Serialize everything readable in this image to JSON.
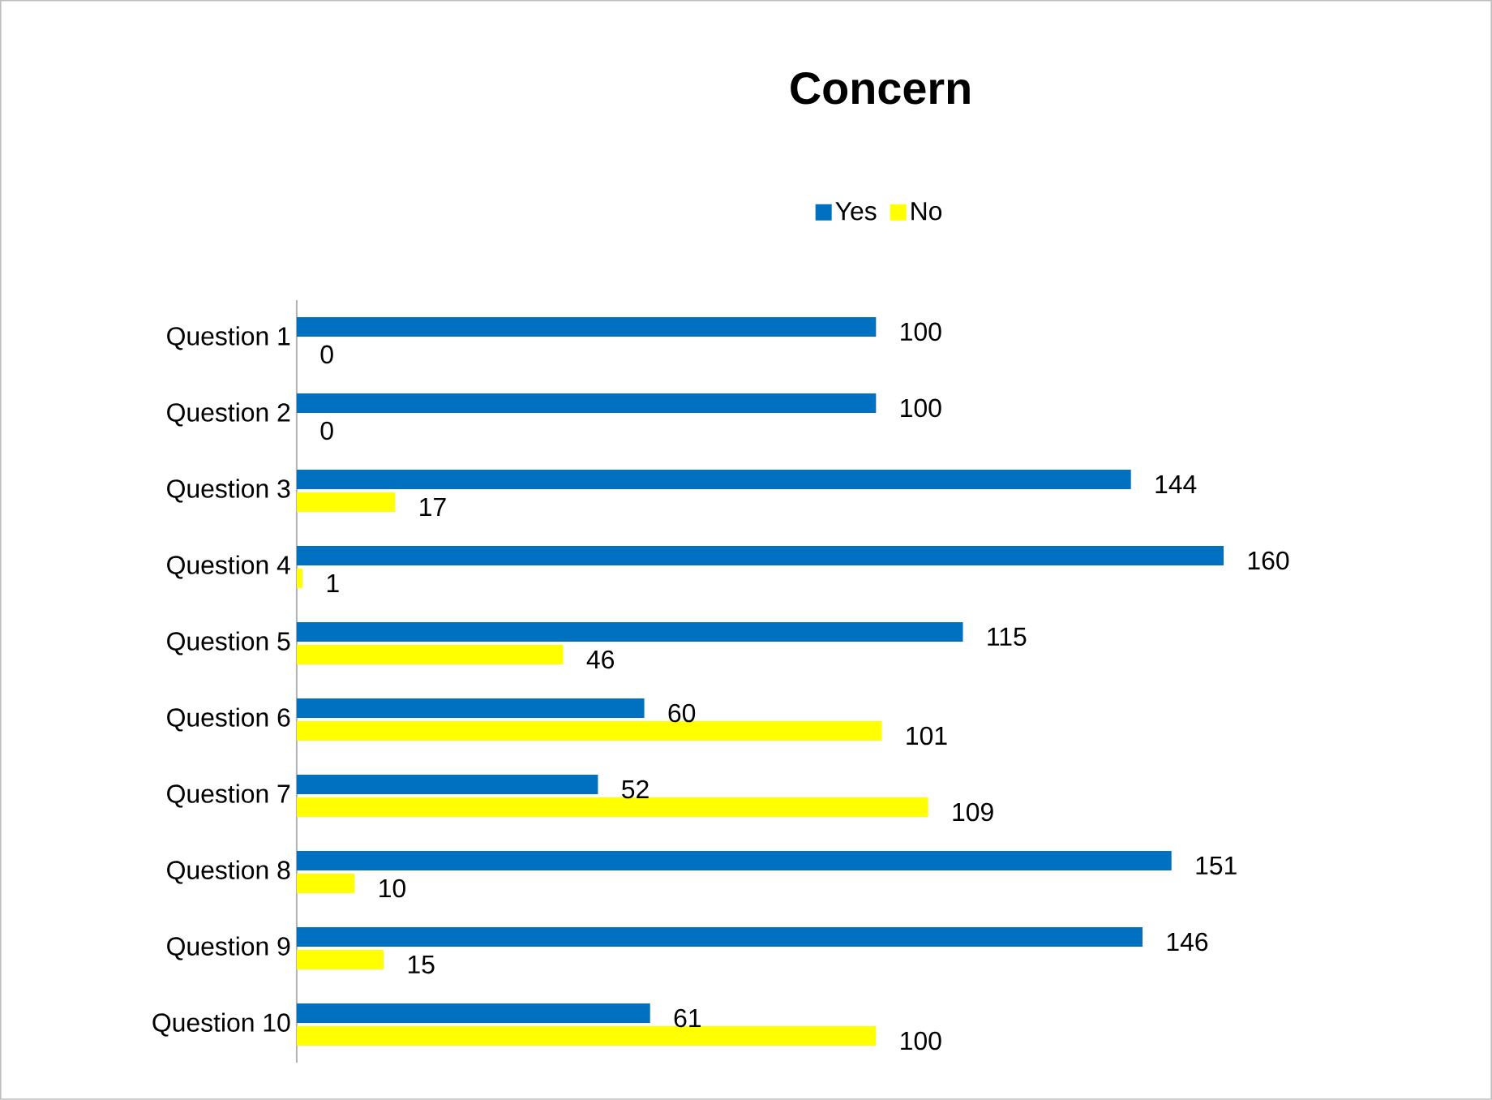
{
  "chart_data": {
    "type": "bar",
    "orientation": "horizontal",
    "title": "Concern",
    "categories": [
      "Question 1",
      "Question 2",
      "Question 3",
      "Question 4",
      "Question 5",
      "Question 6",
      "Question 7",
      "Question 8",
      "Question 9",
      "Question 10"
    ],
    "series": [
      {
        "name": "Yes",
        "color": "#0070c0",
        "values": [
          100,
          100,
          144,
          160,
          115,
          60,
          52,
          151,
          146,
          61
        ]
      },
      {
        "name": "No",
        "color": "#ffff00",
        "values": [
          0,
          0,
          17,
          1,
          46,
          101,
          109,
          10,
          15,
          100
        ]
      }
    ],
    "tick_labels": "y",
    "data_labels": true,
    "legend": "top",
    "grid": false
  }
}
